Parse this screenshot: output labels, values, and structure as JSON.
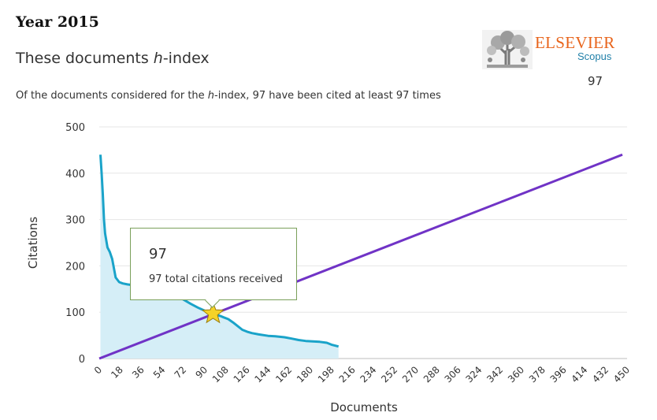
{
  "header": {
    "year_label": "Year 2015",
    "title_pre": "These documents ",
    "title_italic": "h",
    "title_post": "-index",
    "subtitle_pre": "Of the documents considered for the ",
    "subtitle_italic": "h",
    "subtitle_post": "-index, 97 have been cited at least 97 times"
  },
  "brand": {
    "name": "ELSEVIER",
    "product": "Scopus",
    "name_color": "#e8641b",
    "product_color": "#1f7fa8"
  },
  "h_index_value": "97",
  "tooltip": {
    "value": "97",
    "text": "97 total citations received",
    "border_color": "#7aa05a"
  },
  "chart_data": {
    "type": "line",
    "title": "",
    "xlabel": "Documents",
    "ylabel": "Citations",
    "xlim": [
      0,
      450
    ],
    "ylim": [
      0,
      500
    ],
    "x_ticks": [
      0,
      18,
      36,
      54,
      72,
      90,
      108,
      126,
      144,
      162,
      180,
      198,
      216,
      234,
      252,
      270,
      288,
      306,
      324,
      342,
      360,
      378,
      396,
      414,
      432,
      450
    ],
    "y_ticks": [
      0,
      100,
      200,
      300,
      400,
      500
    ],
    "grid": true,
    "series": [
      {
        "color": "#1aa3c9",
        "fill": "#d5eef7",
        "x": [
          1,
          2,
          3,
          4,
          5,
          7,
          9,
          11,
          14,
          17,
          20,
          24,
          30,
          36,
          42,
          48,
          54,
          60,
          66,
          72,
          78,
          84,
          90,
          97,
          103,
          106,
          110,
          114,
          118,
          122,
          126,
          130,
          136,
          144,
          150,
          158,
          164,
          170,
          176,
          182,
          188,
          194,
          198,
          204
        ],
        "y": [
          440,
          400,
          355,
          300,
          270,
          240,
          230,
          215,
          175,
          165,
          162,
          160,
          158,
          155,
          152,
          148,
          145,
          140,
          135,
          127,
          118,
          110,
          103,
          97,
          92,
          89,
          85,
          78,
          70,
          62,
          58,
          55,
          52,
          49,
          48,
          46,
          43,
          40,
          38,
          37,
          36,
          34,
          30,
          26
        ]
      },
      {
        "color": "#7033c6",
        "x": [
          0,
          446
        ],
        "y": [
          0,
          440
        ]
      }
    ],
    "marker": {
      "x": 97,
      "y": 97,
      "shape": "star",
      "color": "#f5d327"
    }
  }
}
